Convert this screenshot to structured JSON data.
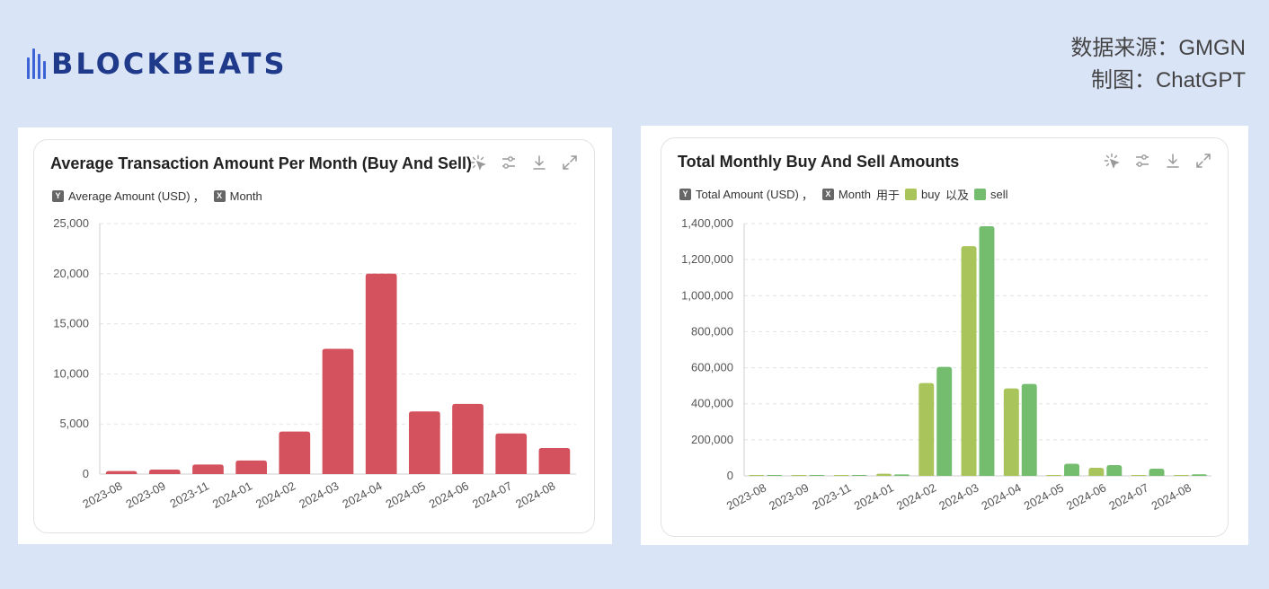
{
  "brand": {
    "logo_text": "BLOCKBEATS"
  },
  "source": {
    "line1": "数据来源：GMGN",
    "line2": "制图：ChatGPT"
  },
  "icons": [
    "magic-cursor-icon",
    "sliders-icon",
    "download-icon",
    "expand-icon"
  ],
  "chart_data": [
    {
      "type": "bar",
      "title": "Average Transaction Amount Per Month (Buy And Sell)",
      "legend": {
        "y_badge": "Y",
        "y_label": "Average Amount (USD)",
        "sep": "，",
        "x_badge": "X",
        "x_label": "Month"
      },
      "categories": [
        "2023-08",
        "2023-09",
        "2023-11",
        "2024-01",
        "2024-02",
        "2024-03",
        "2024-04",
        "2024-05",
        "2024-06",
        "2024-07",
        "2024-08"
      ],
      "series": [
        {
          "values": [
            300,
            450,
            950,
            1350,
            4250,
            12500,
            20000,
            6250,
            7000,
            4050,
            2600
          ],
          "color": "#d4515e"
        }
      ],
      "ylim": [
        0,
        25000
      ],
      "yticks": [
        0,
        5000,
        10000,
        15000,
        20000,
        25000
      ],
      "ytick_labels": [
        "0",
        "5,000",
        "10,000",
        "15,000",
        "20,000",
        "25,000"
      ],
      "grid": true
    },
    {
      "type": "bar",
      "title": "Total Monthly Buy And Sell Amounts",
      "legend": {
        "y_badge": "Y",
        "y_label": "Total Amount (USD)",
        "sep": "，",
        "x_badge": "X",
        "x_label": "Month",
        "joiner1": "用于",
        "joiner2": "以及"
      },
      "categories": [
        "2023-08",
        "2023-09",
        "2023-11",
        "2024-01",
        "2024-02",
        "2024-03",
        "2024-04",
        "2024-05",
        "2024-06",
        "2024-07",
        "2024-08"
      ],
      "series": [
        {
          "name": "buy",
          "color": "#a9c45a",
          "values": [
            2000,
            1000,
            2000,
            12000,
            515000,
            1275000,
            485000,
            5000,
            45000,
            5000,
            2000
          ]
        },
        {
          "name": "sell",
          "color": "#74bd6f",
          "values": [
            1000,
            1000,
            2000,
            8000,
            605000,
            1385000,
            510000,
            67000,
            60000,
            40000,
            9000
          ]
        }
      ],
      "ylim": [
        0,
        1400000
      ],
      "yticks": [
        0,
        200000,
        400000,
        600000,
        800000,
        1000000,
        1200000,
        1400000
      ],
      "ytick_labels": [
        "0",
        "200,000",
        "400,000",
        "600,000",
        "800,000",
        "1,000,000",
        "1,200,000",
        "1,400,000"
      ],
      "grid": true
    }
  ]
}
